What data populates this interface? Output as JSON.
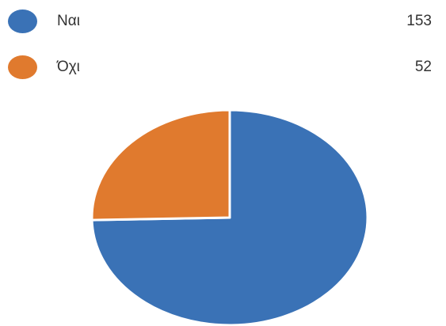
{
  "chart_data": {
    "type": "pie",
    "categories": [
      "Ναι",
      "Όχι"
    ],
    "values": [
      153,
      52
    ],
    "colors": [
      "#3a72b6",
      "#e07a2e"
    ],
    "legend_position": "top"
  },
  "legend": {
    "items": [
      {
        "label": "Ναι",
        "count": "153",
        "color": "#3a72b6"
      },
      {
        "label": "Όχι",
        "count": "52",
        "color": "#e07a2e"
      }
    ]
  }
}
